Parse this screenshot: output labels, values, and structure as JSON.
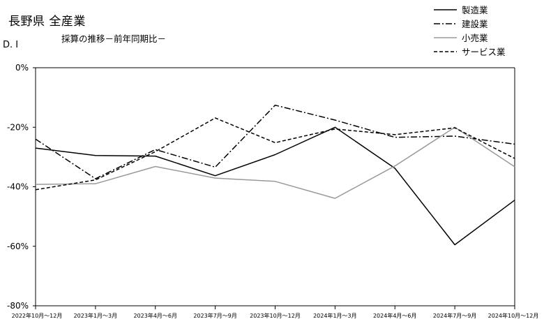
{
  "header": {
    "title": "長野県 全産業",
    "subtitle": "採算の推移－前年同期比－",
    "ylabel": "D. I"
  },
  "chart_data": {
    "type": "line",
    "title": "長野県 全産業",
    "subtitle": "採算の推移－前年同期比－",
    "xlabel": "",
    "ylabel": "D. I",
    "ylim": [
      -80,
      0
    ],
    "yticks": [
      "0%",
      "-20%",
      "-40%",
      "-60%",
      "-80%"
    ],
    "ytick_values": [
      0,
      -20,
      -40,
      -60,
      -80
    ],
    "grid": false,
    "legend_position": "top-right",
    "categories": [
      "2022年10月～12月",
      "2023年1月～3月",
      "2023年4月～6月",
      "2023年7月～9月",
      "2023年10月～12月",
      "2024年1月～3月",
      "2024年4月～6月",
      "2024年7月～9月",
      "2024年10月～12月"
    ],
    "series": [
      {
        "name": "製造業",
        "style": "solid",
        "color": "#000000",
        "values": [
          -27,
          -29.5,
          -29.7,
          -36.3,
          -29.2,
          -20,
          -33.8,
          -59.5,
          -44.5
        ]
      },
      {
        "name": "建設業",
        "style": "dashdot",
        "color": "#000000",
        "values": [
          -24,
          -37.3,
          -27.5,
          -33.4,
          -12.6,
          -17.6,
          -23.4,
          -23,
          -25.7
        ]
      },
      {
        "name": "小売業",
        "style": "solid",
        "color": "#999999",
        "values": [
          -39.2,
          -39,
          -33.2,
          -37.1,
          -38.2,
          -43.9,
          -33,
          -20,
          -33.3
        ]
      },
      {
        "name": "サービス業",
        "style": "dashed",
        "color": "#000000",
        "values": [
          -41,
          -37.7,
          -28.2,
          -16.9,
          -25.2,
          -20.6,
          -22.5,
          -20.2,
          -30.5
        ]
      }
    ]
  }
}
